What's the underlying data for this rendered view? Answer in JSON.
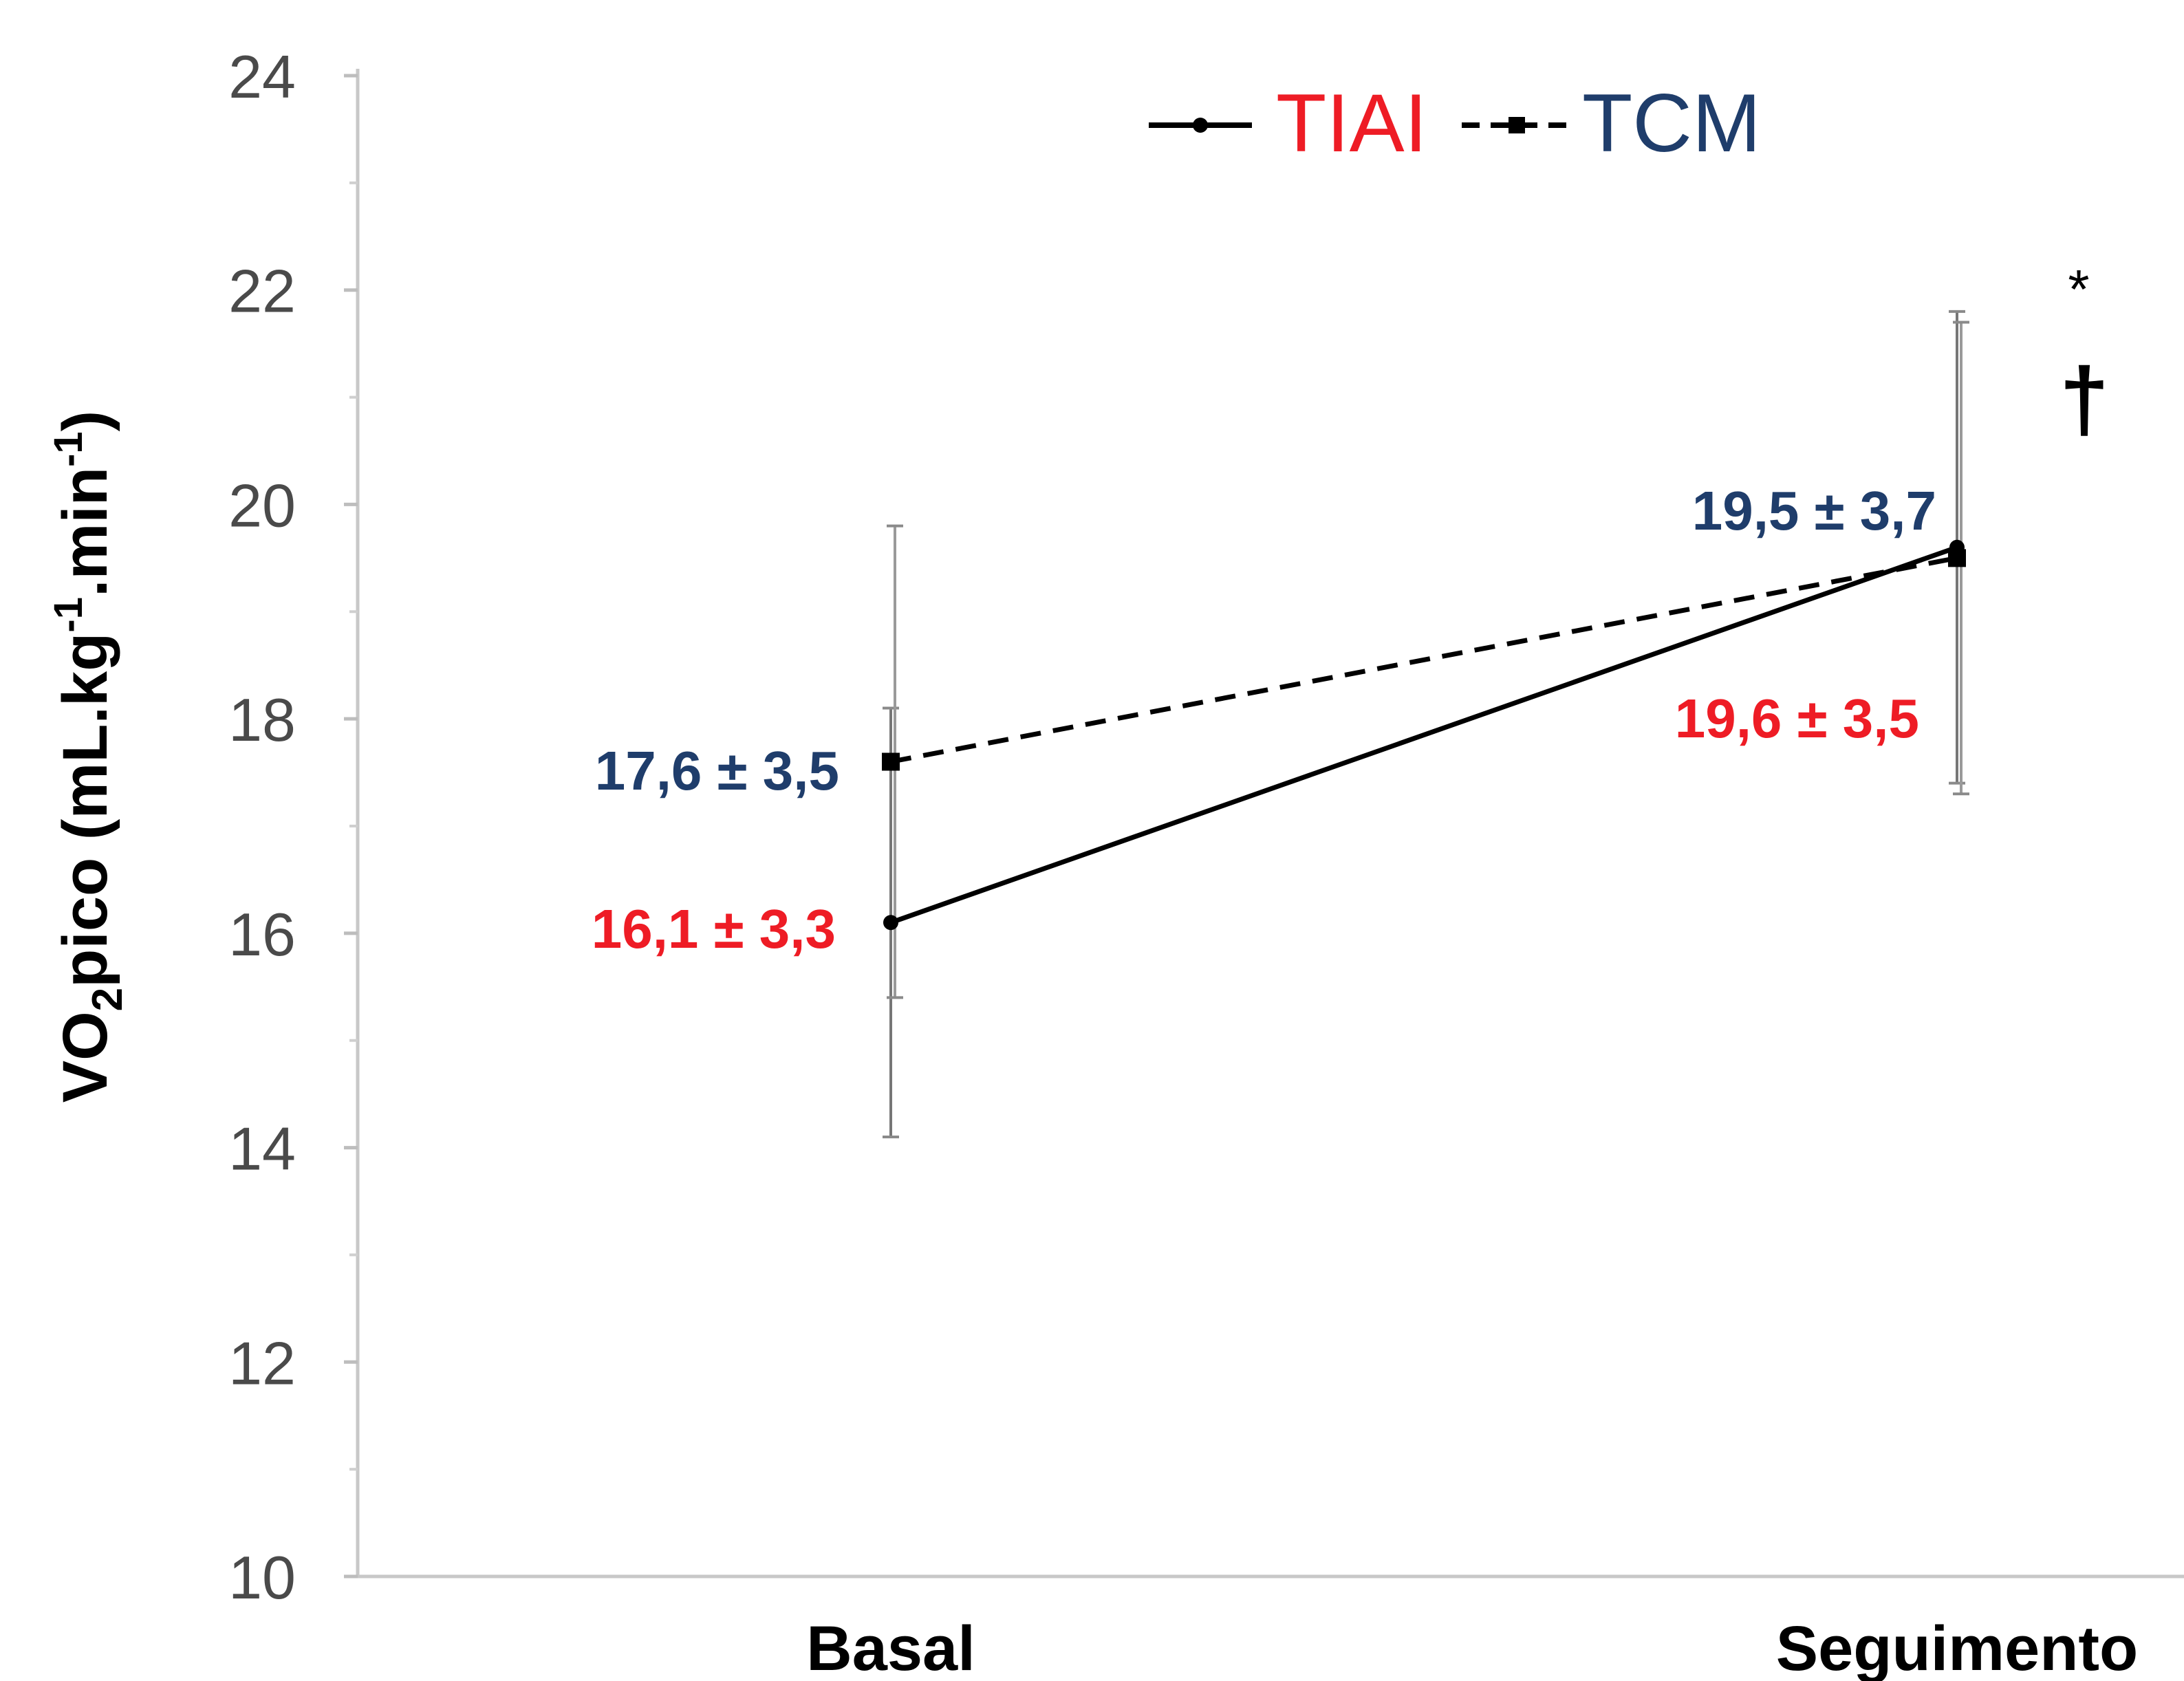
{
  "chart_data": {
    "type": "line",
    "categories": [
      "Basal",
      "Seguimento"
    ],
    "ylabel_main": "VO",
    "ylabel_sub": "2",
    "ylabel_rest": "pico (mL.kg",
    "ylabel_sup1": "-1",
    "ylabel_mid": ".min",
    "ylabel_sup2": "-1",
    "ylabel_end": ")",
    "ylim": [
      10,
      24
    ],
    "yticks": [
      "10",
      "12",
      "14",
      "16",
      "18",
      "20",
      "22",
      "24"
    ],
    "series": [
      {
        "name": "TIAI",
        "color": "#ee1c25",
        "line": "solid",
        "values": [
          16.1,
          19.6
        ],
        "errors": [
          2.0,
          2.2
        ],
        "labels": [
          "16,1 ± 3,3",
          "19,6 ± 3,5"
        ]
      },
      {
        "name": "TCM",
        "color": "#1f3d6b",
        "line": "dashed",
        "values": [
          17.6,
          19.5
        ],
        "errors": [
          2.2,
          2.2
        ],
        "labels": [
          "17,6 ± 3,5",
          "19,5 ± 3,7"
        ]
      }
    ],
    "annotations": [
      "*",
      "†"
    ],
    "grid": false,
    "legend_position": "top-right"
  }
}
